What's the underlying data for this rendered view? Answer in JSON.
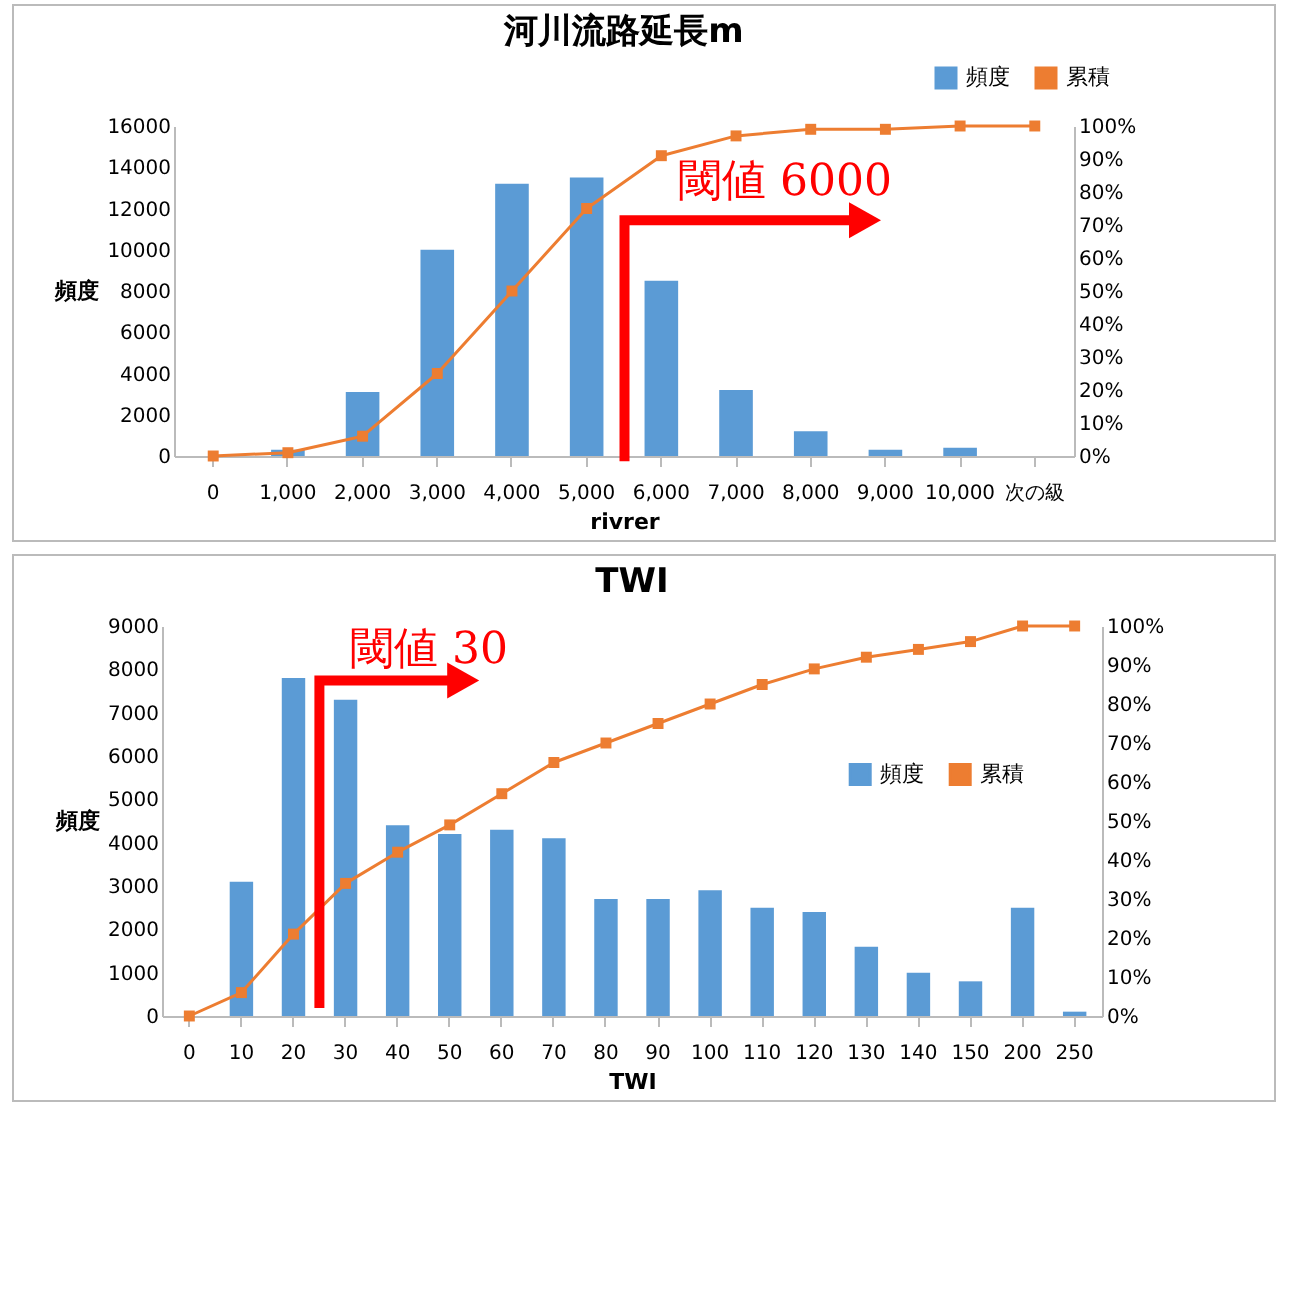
{
  "chart_data": [
    {
      "type": "bar",
      "title": "河川流路延長m",
      "xlabel": "rivrer",
      "ylabel": "頻度",
      "categories": [
        "0",
        "1,000",
        "2,000",
        "3,000",
        "4,000",
        "5,000",
        "6,000",
        "7,000",
        "8,000",
        "9,000",
        "10,000",
        "次の級"
      ],
      "series": [
        {
          "name": "頻度",
          "color": "#5b9bd5",
          "values": [
            0,
            300,
            3100,
            10000,
            13200,
            13500,
            8500,
            3200,
            1200,
            300,
            400,
            0
          ]
        },
        {
          "name": "累積",
          "type": "line",
          "axis": "y2",
          "color": "#ed7d31",
          "values": [
            0,
            1,
            6,
            25,
            50,
            75,
            91,
            97,
            99,
            99,
            100,
            100
          ]
        }
      ],
      "ylim": [
        0,
        16000
      ],
      "yticks": [
        0,
        2000,
        4000,
        6000,
        8000,
        10000,
        12000,
        14000,
        16000
      ],
      "y2lim": [
        0,
        100
      ],
      "y2ticks": [
        {
          "value": 0,
          "label": "0%"
        },
        {
          "value": 10,
          "label": "10%"
        },
        {
          "value": 20,
          "label": "20%"
        },
        {
          "value": 30,
          "label": "30%"
        },
        {
          "value": 40,
          "label": "40%"
        },
        {
          "value": 50,
          "label": "50%"
        },
        {
          "value": 60,
          "label": "60%"
        },
        {
          "value": 70,
          "label": "70%"
        },
        {
          "value": 80,
          "label": "80%"
        },
        {
          "value": 90,
          "label": "90%"
        },
        {
          "value": 100,
          "label": "100%"
        }
      ],
      "annotations": [
        "閾値 6000"
      ],
      "legend": "top right",
      "marker": "square"
    },
    {
      "type": "bar",
      "title": "TWI",
      "xlabel": "TWI",
      "ylabel": "頻度",
      "categories": [
        "0",
        "10",
        "20",
        "30",
        "40",
        "50",
        "60",
        "70",
        "80",
        "90",
        "100",
        "110",
        "120",
        "130",
        "140",
        "150",
        "200",
        "250"
      ],
      "series": [
        {
          "name": "頻度",
          "color": "#5b9bd5",
          "values": [
            0,
            3100,
            7800,
            7300,
            4400,
            4200,
            4300,
            4100,
            2700,
            2700,
            2900,
            2500,
            2400,
            1600,
            1000,
            800,
            2500,
            100
          ]
        },
        {
          "name": "累積",
          "type": "line",
          "axis": "y2",
          "color": "#ed7d31",
          "values": [
            0,
            6,
            21,
            34,
            42,
            49,
            57,
            65,
            70,
            75,
            80,
            85,
            89,
            92,
            94,
            96,
            100,
            100
          ]
        }
      ],
      "ylim": [
        0,
        9000
      ],
      "yticks": [
        0,
        1000,
        2000,
        3000,
        4000,
        5000,
        6000,
        7000,
        8000,
        9000
      ],
      "y2lim": [
        0,
        100
      ],
      "y2ticks": [
        {
          "value": 0,
          "label": "0%"
        },
        {
          "value": 10,
          "label": "10%"
        },
        {
          "value": 20,
          "label": "20%"
        },
        {
          "value": 30,
          "label": "30%"
        },
        {
          "value": 40,
          "label": "40%"
        },
        {
          "value": 50,
          "label": "50%"
        },
        {
          "value": 60,
          "label": "60%"
        },
        {
          "value": 70,
          "label": "70%"
        },
        {
          "value": 80,
          "label": "80%"
        },
        {
          "value": 90,
          "label": "90%"
        },
        {
          "value": 100,
          "label": "100%"
        }
      ],
      "annotations": [
        "閾値 30"
      ],
      "legend": "right",
      "marker": "square"
    }
  ]
}
